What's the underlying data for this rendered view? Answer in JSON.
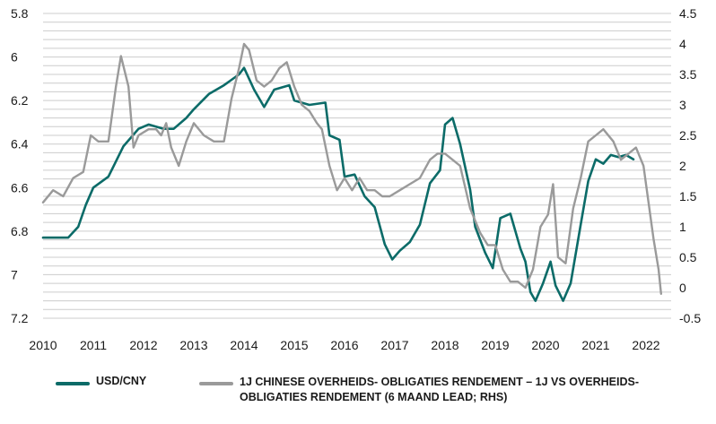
{
  "chart_data": {
    "type": "line",
    "x_range": [
      2010,
      2022.5
    ],
    "x_ticks": [
      "2010",
      "2011",
      "2012",
      "2013",
      "2014",
      "2015",
      "2016",
      "2017",
      "2018",
      "2019",
      "2020",
      "2021",
      "2022"
    ],
    "y_left": {
      "range": [
        7.2,
        5.8
      ],
      "inverted": true,
      "ticks": [
        "5.8",
        "6",
        "6.2",
        "6.4",
        "6.6",
        "6.8",
        "7",
        "7.2"
      ]
    },
    "y_right": {
      "range": [
        -0.5,
        4.5
      ],
      "ticks": [
        "4.5",
        "4",
        "3.5",
        "3",
        "2.5",
        "2",
        "1.5",
        "1",
        "0.5",
        "0",
        "-0.5"
      ]
    },
    "grid": true,
    "legend_position": "bottom",
    "series": [
      {
        "name": "USD/CNY",
        "axis": "left",
        "color": "#0b6b68",
        "x": [
          2010.0,
          2010.5,
          2010.7,
          2010.85,
          2011.0,
          2011.3,
          2011.6,
          2011.9,
          2012.1,
          2012.4,
          2012.6,
          2012.85,
          2013.0,
          2013.3,
          2013.6,
          2013.9,
          2014.0,
          2014.2,
          2014.4,
          2014.6,
          2014.9,
          2015.0,
          2015.3,
          2015.6,
          2015.62,
          2015.7,
          2015.9,
          2016.0,
          2016.2,
          2016.4,
          2016.6,
          2016.8,
          2016.95,
          2017.1,
          2017.3,
          2017.5,
          2017.7,
          2017.9,
          2018.0,
          2018.15,
          2018.3,
          2018.5,
          2018.6,
          2018.8,
          2018.95,
          2019.1,
          2019.3,
          2019.5,
          2019.6,
          2019.7,
          2019.8,
          2019.95,
          2020.1,
          2020.2,
          2020.35,
          2020.5,
          2020.7,
          2020.85,
          2021.0,
          2021.15,
          2021.3,
          2021.45,
          2021.6,
          2021.75
        ],
        "values": [
          6.83,
          6.83,
          6.78,
          6.68,
          6.6,
          6.55,
          6.41,
          6.33,
          6.31,
          6.33,
          6.33,
          6.28,
          6.24,
          6.17,
          6.13,
          6.08,
          6.05,
          6.15,
          6.23,
          6.15,
          6.13,
          6.2,
          6.22,
          6.21,
          6.21,
          6.36,
          6.38,
          6.55,
          6.54,
          6.64,
          6.69,
          6.86,
          6.93,
          6.89,
          6.85,
          6.77,
          6.58,
          6.52,
          6.31,
          6.28,
          6.4,
          6.61,
          6.78,
          6.9,
          6.97,
          6.74,
          6.72,
          6.88,
          6.94,
          7.08,
          7.12,
          7.04,
          6.94,
          7.05,
          7.12,
          7.04,
          6.77,
          6.57,
          6.47,
          6.49,
          6.45,
          6.46,
          6.45,
          6.47
        ]
      },
      {
        "name": "1J CHINESE OVERHEIDS- OBLIGATIES RENDEMENT – 1J VS OVERHEIDS- OBLIGATIES RENDEMENT (6 MAAND LEAD; RHS)",
        "axis": "right",
        "color": "#9a9a9a",
        "x": [
          2010.0,
          2010.2,
          2010.4,
          2010.6,
          2010.8,
          2010.95,
          2011.1,
          2011.3,
          2011.45,
          2011.55,
          2011.7,
          2011.8,
          2011.9,
          2012.1,
          2012.25,
          2012.35,
          2012.45,
          2012.55,
          2012.7,
          2012.85,
          2013.0,
          2013.2,
          2013.4,
          2013.6,
          2013.75,
          2013.9,
          2014.0,
          2014.1,
          2014.25,
          2014.4,
          2014.55,
          2014.7,
          2014.85,
          2015.0,
          2015.15,
          2015.3,
          2015.45,
          2015.55,
          2015.7,
          2015.85,
          2016.0,
          2016.15,
          2016.3,
          2016.45,
          2016.6,
          2016.75,
          2016.9,
          2017.1,
          2017.3,
          2017.5,
          2017.7,
          2017.85,
          2018.0,
          2018.15,
          2018.3,
          2018.5,
          2018.7,
          2018.85,
          2019.0,
          2019.15,
          2019.3,
          2019.45,
          2019.6,
          2019.75,
          2019.9,
          2020.05,
          2020.15,
          2020.25,
          2020.4,
          2020.55,
          2020.7,
          2020.85,
          2021.0,
          2021.15,
          2021.35,
          2021.5,
          2021.65,
          2021.8,
          2021.95,
          2022.05,
          2022.15,
          2022.25,
          2022.3
        ],
        "values": [
          1.4,
          1.6,
          1.5,
          1.8,
          1.9,
          2.5,
          2.4,
          2.4,
          3.3,
          3.8,
          3.3,
          2.3,
          2.5,
          2.6,
          2.6,
          2.5,
          2.7,
          2.3,
          2.0,
          2.4,
          2.7,
          2.5,
          2.4,
          2.4,
          3.1,
          3.6,
          4.0,
          3.9,
          3.4,
          3.3,
          3.4,
          3.6,
          3.7,
          3.3,
          3.0,
          2.9,
          2.7,
          2.6,
          2.0,
          1.6,
          1.8,
          1.6,
          1.8,
          1.6,
          1.6,
          1.5,
          1.5,
          1.6,
          1.7,
          1.8,
          2.1,
          2.2,
          2.2,
          2.1,
          2.0,
          1.3,
          0.9,
          0.7,
          0.7,
          0.3,
          0.1,
          0.1,
          0.0,
          0.3,
          1.0,
          1.2,
          1.7,
          0.5,
          0.4,
          1.3,
          1.8,
          2.4,
          2.5,
          2.6,
          2.4,
          2.1,
          2.2,
          2.3,
          2.0,
          1.4,
          0.8,
          0.3,
          -0.1
        ]
      }
    ]
  }
}
